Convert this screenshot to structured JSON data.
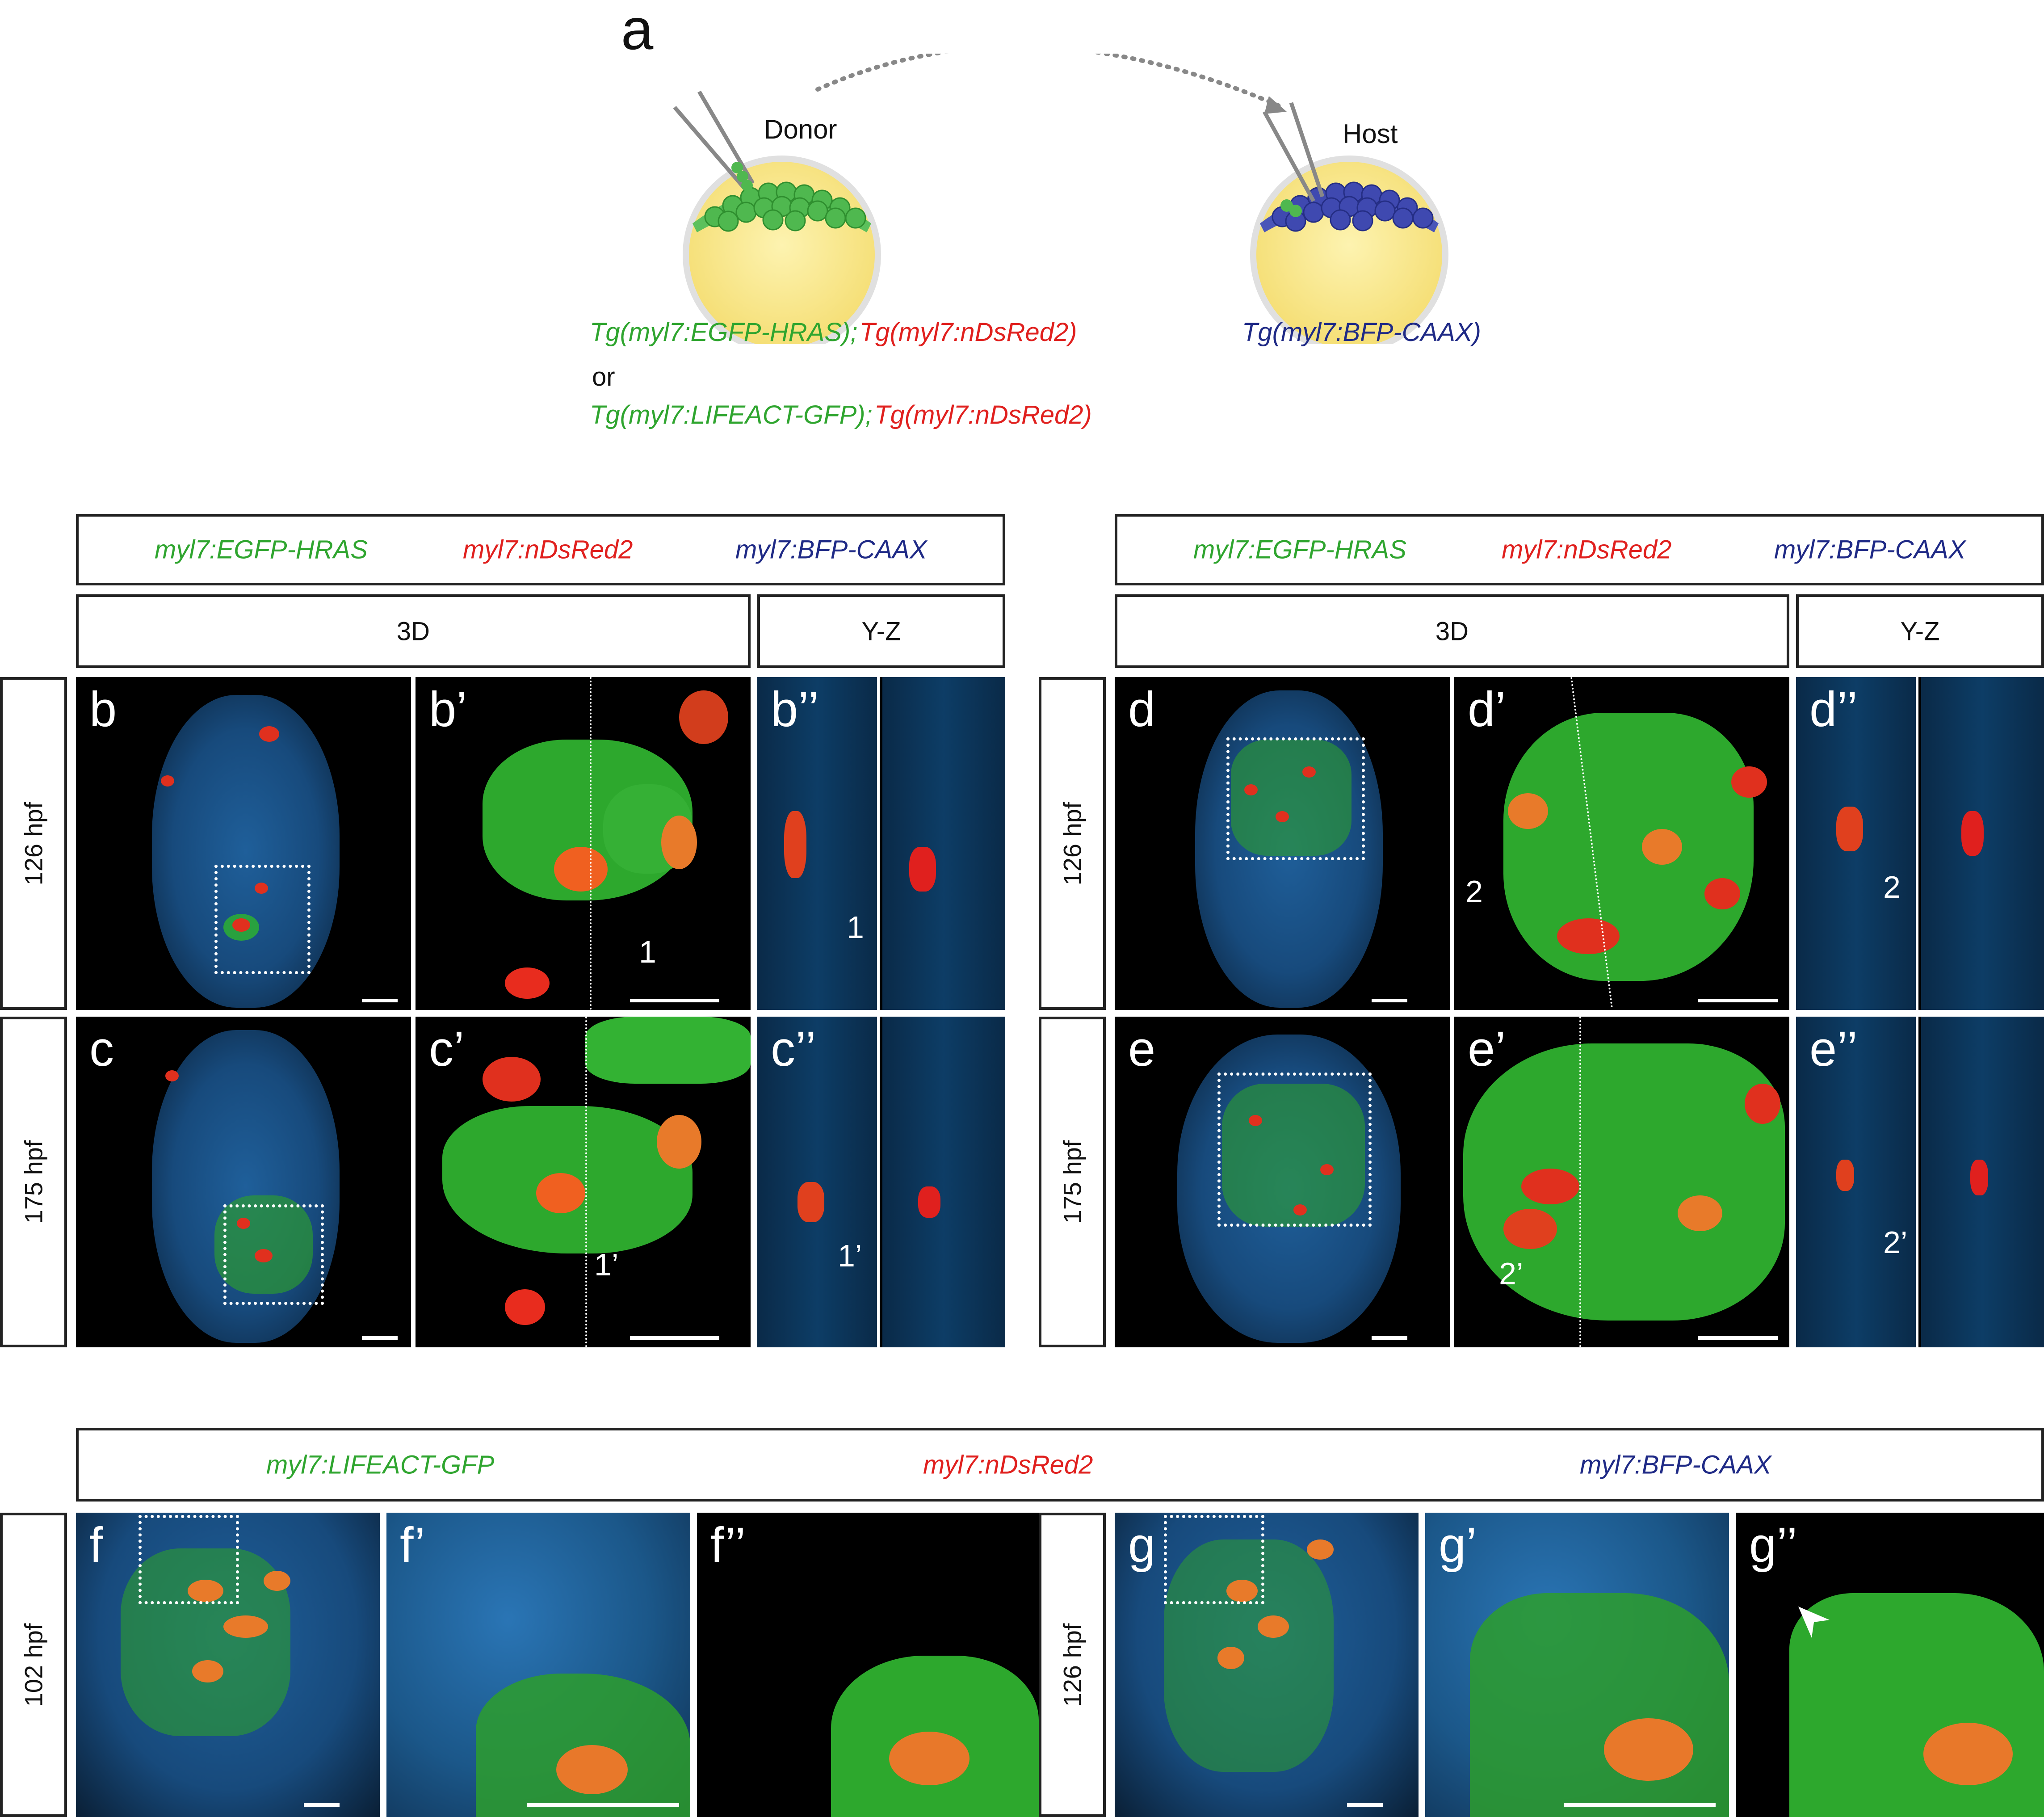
{
  "panel_a": {
    "letter": "a",
    "donor_label": "Donor",
    "host_label": "Host",
    "donor_line1_green": "Tg(myl7:EGFP-HRAS)",
    "donor_line1_sep": ";",
    "donor_line1_red": "Tg(myl7:nDsRed2)",
    "or": "or",
    "donor_line2_green": "Tg(myl7:LIFEACT-GFP)",
    "donor_line2_sep": ";",
    "donor_line2_red": "Tg(myl7:nDsRed2)",
    "host_line": "Tg(myl7:BFP-CAAX)"
  },
  "legend_hras": {
    "green": "myl7:EGFP-HRAS",
    "red": "myl7:nDsRed2",
    "blue": "myl7:BFP-CAAX"
  },
  "legend_lifeact": {
    "green": "myl7:LIFEACT-GFP",
    "red": "myl7:nDsRed2",
    "blue": "myl7:BFP-CAAX"
  },
  "view_3d": "3D",
  "view_yz": "Y-Z",
  "times": {
    "t126": "126 hpf",
    "t175": "175 hpf",
    "t102": "102 hpf"
  },
  "panels": {
    "b": "b",
    "b1": "b’",
    "b2": "b’’",
    "c": "c",
    "c1": "c’",
    "c2": "c’’",
    "d": "d",
    "d1": "d’",
    "d2": "d’’",
    "e": "e",
    "e1": "e’",
    "e2": "e’’",
    "f": "f",
    "f1": "f’",
    "f2": "f’’",
    "g": "g",
    "g1": "g’",
    "g2": "g’’"
  },
  "cell_labels": {
    "one": "1",
    "one_p": "1’",
    "two": "2",
    "two_p": "2’"
  },
  "colors": {
    "gfp": "#2fa52f",
    "dsred": "#e0201e",
    "bfp": "#1f2a86",
    "membrane": "#3aa0e8"
  }
}
